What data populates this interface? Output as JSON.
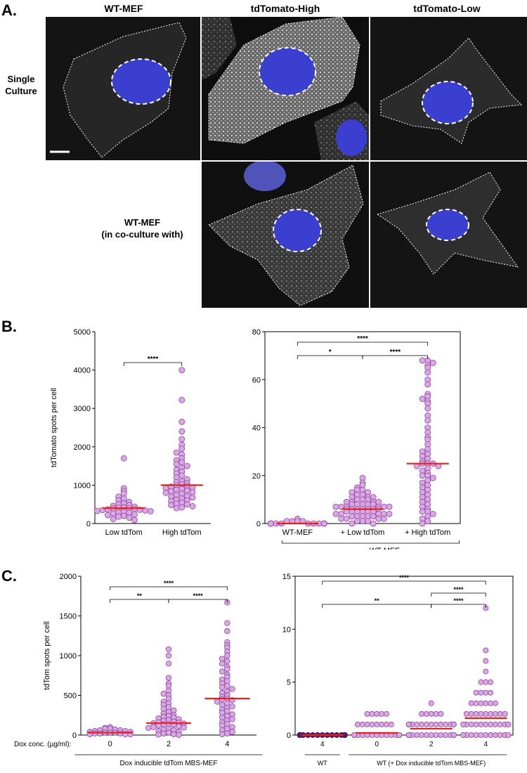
{
  "panel_a": {
    "letter": "A.",
    "columns": [
      "WT-MEF",
      "tdTomato-High",
      "tdTomato-Low"
    ],
    "rows": [
      "Single\nCulture",
      "WT-MEF\n(in co-culture with)"
    ],
    "colors": {
      "nucleus": "#3b3fcf",
      "background": "#0c0c0c",
      "signal": "#e8e8e8"
    }
  },
  "panel_b": {
    "letter": "B."
  },
  "panel_c": {
    "letter": "C."
  },
  "chart_data": [
    {
      "id": "B-left",
      "type": "scatter",
      "ylabel": "tdTomato spots per cell",
      "ylim": [
        0,
        5000
      ],
      "yticks": [
        0,
        1000,
        2000,
        3000,
        4000,
        5000
      ],
      "categories": [
        "Low tdTom",
        "High tdTom"
      ],
      "medians": [
        400,
        1000
      ],
      "significance": [
        {
          "from": 0,
          "to": 1,
          "label": "****"
        }
      ],
      "series": [
        {
          "values": [
            1700,
            920,
            850,
            780,
            700,
            650,
            600,
            560,
            530,
            500,
            480,
            460,
            440,
            420,
            410,
            400,
            390,
            380,
            370,
            360,
            350,
            340,
            330,
            320,
            300,
            290,
            280,
            260,
            240,
            220,
            200,
            180,
            150,
            120,
            90
          ]
        },
        {
          "values": [
            4000,
            3220,
            2650,
            2400,
            2200,
            2050,
            1950,
            1850,
            1800,
            1700,
            1650,
            1600,
            1550,
            1500,
            1450,
            1400,
            1350,
            1300,
            1250,
            1200,
            1150,
            1100,
            1080,
            1050,
            1020,
            1000,
            980,
            960,
            940,
            920,
            900,
            880,
            860,
            840,
            820,
            800,
            780,
            750,
            720,
            700,
            680,
            650,
            620,
            600,
            580,
            550,
            520,
            500,
            480,
            450,
            420,
            400
          ]
        }
      ]
    },
    {
      "id": "B-right",
      "type": "scatter",
      "ylim": [
        0,
        80
      ],
      "yticks": [
        0,
        20,
        40,
        60,
        80
      ],
      "categories": [
        "WT-MEF",
        "+ Low tdTom",
        "+ High tdTom"
      ],
      "group_label": "WT-MEF",
      "medians": [
        0,
        6,
        25
      ],
      "significance": [
        {
          "from": 0,
          "to": 2,
          "label": "****"
        },
        {
          "from": 0,
          "to": 1,
          "label": "*"
        },
        {
          "from": 1,
          "to": 2,
          "label": "****"
        }
      ],
      "series": [
        {
          "values": [
            2,
            1,
            1,
            1,
            1,
            0,
            0,
            0,
            0,
            0,
            0,
            0,
            0,
            0,
            0,
            0,
            0,
            0,
            0,
            0,
            0,
            0,
            0,
            0,
            0
          ]
        },
        {
          "values": [
            19,
            17,
            16,
            15,
            14,
            14,
            13,
            13,
            12,
            12,
            11,
            11,
            11,
            10,
            10,
            10,
            9,
            9,
            9,
            9,
            8,
            8,
            8,
            8,
            8,
            7,
            7,
            7,
            7,
            7,
            7,
            6,
            6,
            6,
            6,
            6,
            6,
            6,
            5,
            5,
            5,
            5,
            5,
            5,
            4,
            4,
            4,
            4,
            4,
            3,
            3,
            3,
            3,
            3,
            2,
            2,
            2,
            2,
            1,
            1,
            1,
            0,
            0
          ]
        },
        {
          "values": [
            68,
            68,
            67,
            66,
            65,
            63,
            60,
            58,
            54,
            53,
            52,
            51,
            50,
            48,
            45,
            43,
            40,
            38,
            36,
            35,
            33,
            31,
            30,
            29,
            28,
            27,
            26,
            25,
            25,
            25,
            24,
            24,
            23,
            22,
            21,
            20,
            20,
            19,
            18,
            17,
            16,
            15,
            14,
            13,
            12,
            11,
            10,
            9,
            8,
            7,
            6,
            5,
            5,
            4,
            3,
            2,
            1,
            0
          ]
        }
      ]
    },
    {
      "id": "C-left",
      "type": "scatter",
      "ylabel": "tdTom spots per cell",
      "ylim": [
        0,
        2000
      ],
      "yticks": [
        0,
        500,
        1000,
        1500,
        2000
      ],
      "categories": [
        "0",
        "2",
        "4"
      ],
      "row_label": "Dox conc. (µg/ml):",
      "group_label": "Dox inducible tdTom MBS-MEF",
      "medians": [
        30,
        150,
        460
      ],
      "significance": [
        {
          "from": 0,
          "to": 2,
          "label": "****"
        },
        {
          "from": 0,
          "to": 1,
          "label": "**"
        },
        {
          "from": 1,
          "to": 2,
          "label": "****"
        }
      ],
      "series": [
        {
          "values": [
            100,
            90,
            80,
            80,
            70,
            60,
            60,
            50,
            50,
            40,
            40,
            30,
            30,
            30,
            20,
            20,
            20,
            10,
            10,
            10
          ]
        },
        {
          "values": [
            1080,
            1000,
            900,
            720,
            650,
            620,
            560,
            520,
            500,
            460,
            420,
            400,
            380,
            350,
            330,
            310,
            290,
            270,
            250,
            240,
            230,
            220,
            210,
            200,
            190,
            180,
            170,
            160,
            155,
            150,
            145,
            140,
            135,
            130,
            120,
            110,
            100,
            95,
            90,
            80,
            70,
            60,
            50,
            40,
            30,
            20,
            10,
            5,
            2
          ]
        },
        {
          "values": [
            1670,
            1410,
            1310,
            1170,
            1130,
            1100,
            1050,
            1000,
            960,
            930,
            900,
            860,
            830,
            800,
            760,
            730,
            700,
            680,
            650,
            620,
            600,
            580,
            550,
            530,
            500,
            480,
            460,
            450,
            440,
            420,
            400,
            380,
            360,
            340,
            320,
            300,
            280,
            260,
            240,
            220,
            200,
            180,
            160,
            140,
            120,
            100,
            80,
            60,
            40,
            20,
            10
          ]
        }
      ]
    },
    {
      "id": "C-right",
      "type": "scatter",
      "ylim": [
        0,
        15
      ],
      "yticks": [
        0,
        5,
        10,
        15
      ],
      "categories": [
        "4",
        "0",
        "2",
        "4"
      ],
      "group_labels": [
        "WT",
        "WT (+ Dox inducible tdTom MBS-MEF)"
      ],
      "medians": [
        0,
        0.2,
        0.6,
        1.6
      ],
      "significance": [
        {
          "from": 0,
          "to": 3,
          "label": "****"
        },
        {
          "from": 2,
          "to": 3,
          "label": "****"
        },
        {
          "from": 0,
          "to": 2,
          "label": "**"
        },
        {
          "from": 2,
          "to": 3,
          "label": "****"
        }
      ],
      "series": [
        {
          "values": [
            0,
            0,
            0,
            0,
            0,
            0,
            0,
            0,
            0,
            0,
            0,
            0,
            0,
            0,
            0,
            0,
            0,
            0
          ]
        },
        {
          "values": [
            2,
            2,
            2,
            2,
            2,
            1,
            1,
            1,
            1,
            1,
            1,
            1,
            1,
            0,
            0,
            0,
            0,
            0,
            0,
            0,
            0,
            0,
            0,
            0,
            0,
            0,
            0,
            0,
            0,
            0
          ]
        },
        {
          "values": [
            3,
            2,
            2,
            2,
            2,
            2,
            1,
            1,
            1,
            1,
            1,
            1,
            1,
            1,
            1,
            1,
            1,
            1,
            1,
            1,
            1,
            1,
            0,
            0,
            0,
            0,
            0,
            0,
            0,
            0,
            0,
            0,
            0,
            0,
            0,
            0,
            0,
            0,
            0,
            0
          ]
        },
        {
          "values": [
            12,
            8,
            7,
            6,
            5,
            5,
            5,
            4,
            4,
            4,
            4,
            3,
            3,
            3,
            3,
            3,
            3,
            2,
            2,
            2,
            2,
            2,
            2,
            2,
            2,
            2,
            1,
            1,
            1,
            1,
            1,
            1,
            1,
            1,
            1,
            1,
            1,
            1,
            1,
            0,
            0,
            0,
            0,
            0,
            0,
            0,
            0,
            0,
            0,
            0,
            0
          ]
        }
      ]
    }
  ]
}
